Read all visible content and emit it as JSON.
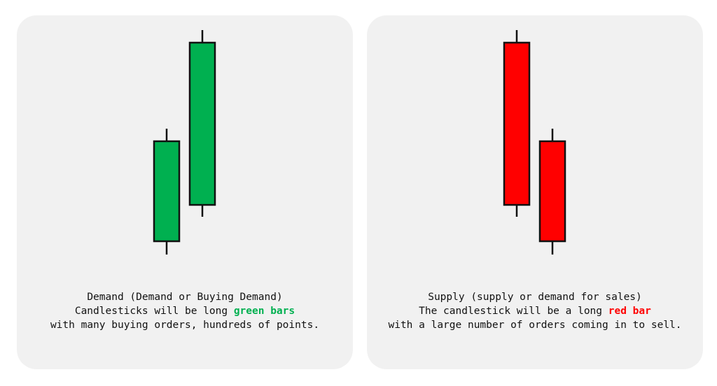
{
  "colors": {
    "panel_bg": "#f1f1f1",
    "green": "#00b050",
    "red": "#ff0000",
    "outline": "#111111"
  },
  "panels": [
    {
      "candles_color": "green",
      "caption": {
        "line1": "Demand (Demand or Buying Demand)",
        "line2_pre": "Candlesticks will be long ",
        "line2_highlight": "green bars",
        "line2_post": "",
        "line3": "with many buying orders, hundreds of points."
      }
    },
    {
      "candles_color": "red",
      "caption": {
        "line1": "Supply (supply or demand for sales)",
        "line2_pre": "The candlestick will be a long ",
        "line2_highlight": "red bar",
        "line2_post": "",
        "line3": "with a large number of orders coming in to sell."
      }
    }
  ]
}
